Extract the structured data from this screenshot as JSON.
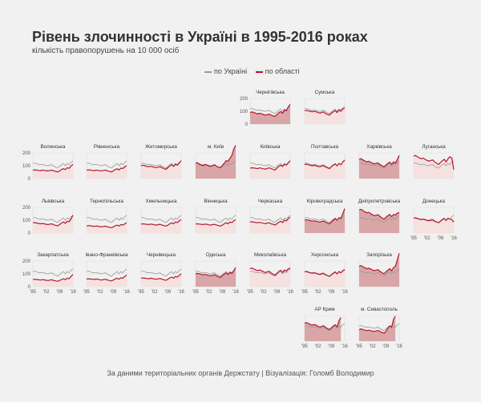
{
  "title": "Рівень злочинності в Україні в 1995-2016 роках",
  "subtitle": "кількість правопорушень на 10 000 осіб",
  "legend": {
    "national": "по Україні",
    "region": "по області"
  },
  "footer": "За даними територіальних органів Держстату | Візуалізація: Голомб Володимир",
  "colors": {
    "national": "#999999",
    "region": "#b2182b",
    "fill_low": "#f6e1e1",
    "fill_high": "#d9a6a8",
    "grid": "#dddddd"
  },
  "chart_data": {
    "type": "line",
    "layout": "small-multiples",
    "x": [
      1995,
      1996,
      1997,
      1998,
      1999,
      2000,
      2001,
      2002,
      2003,
      2004,
      2005,
      2006,
      2007,
      2008,
      2009,
      2010,
      2011,
      2012,
      2013,
      2014,
      2015,
      2016
    ],
    "x_tick_labels": [
      "'95",
      "'02",
      "'09",
      "'16"
    ],
    "y_ticks": [
      0,
      100,
      200
    ],
    "ylim": [
      0,
      200
    ],
    "national": [
      118,
      122,
      116,
      110,
      108,
      112,
      108,
      102,
      100,
      106,
      108,
      95,
      88,
      82,
      95,
      108,
      118,
      100,
      118,
      108,
      128,
      138
    ],
    "regions": [
      {
        "name": "Чернігівська",
        "values": [
          90,
          95,
          90,
          85,
          80,
          85,
          80,
          75,
          70,
          75,
          78,
          70,
          65,
          60,
          75,
          88,
          98,
          85,
          110,
          105,
          135,
          155
        ]
      },
      {
        "name": "Сумська",
        "values": [
          105,
          108,
          102,
          100,
          96,
          100,
          96,
          90,
          86,
          92,
          95,
          82,
          76,
          70,
          85,
          96,
          106,
          90,
          110,
          100,
          118,
          125
        ]
      },
      {
        "name": "Волинська",
        "values": [
          65,
          68,
          66,
          64,
          62,
          66,
          64,
          62,
          60,
          64,
          66,
          60,
          56,
          52,
          60,
          70,
          78,
          70,
          85,
          80,
          98,
          110
        ]
      },
      {
        "name": "Рівненська",
        "values": [
          65,
          68,
          66,
          64,
          62,
          66,
          64,
          62,
          60,
          64,
          66,
          60,
          56,
          52,
          60,
          70,
          76,
          68,
          82,
          78,
          92,
          100
        ]
      },
      {
        "name": "Житомирська",
        "values": [
          100,
          105,
          100,
          95,
          92,
          96,
          92,
          88,
          85,
          90,
          94,
          84,
          78,
          72,
          85,
          98,
          108,
          95,
          112,
          104,
          122,
          140
        ]
      },
      {
        "name": "м. Київ",
        "values": [
          120,
          125,
          110,
          105,
          100,
          110,
          105,
          98,
          95,
          100,
          108,
          95,
          90,
          85,
          102,
          120,
          140,
          135,
          160,
          180,
          230,
          280
        ]
      },
      {
        "name": "Київська",
        "values": [
          80,
          85,
          82,
          80,
          78,
          84,
          80,
          76,
          74,
          80,
          84,
          78,
          72,
          66,
          80,
          95,
          105,
          95,
          112,
          105,
          122,
          140
        ]
      },
      {
        "name": "Полтавська",
        "values": [
          110,
          112,
          108,
          104,
          100,
          104,
          100,
          95,
          92,
          98,
          100,
          90,
          84,
          78,
          92,
          104,
          114,
          100,
          118,
          108,
          130,
          145
        ]
      },
      {
        "name": "Харківська",
        "values": [
          150,
          155,
          145,
          138,
          130,
          135,
          128,
          120,
          115,
          120,
          122,
          108,
          100,
          92,
          105,
          118,
          128,
          112,
          130,
          120,
          150,
          180
        ]
      },
      {
        "name": "Луганська",
        "values": [
          175,
          180,
          170,
          162,
          155,
          160,
          150,
          142,
          136,
          142,
          145,
          130,
          120,
          110,
          125,
          138,
          150,
          130,
          155,
          170,
          160,
          70
        ]
      },
      {
        "name": "Львівська",
        "values": [
          80,
          82,
          78,
          75,
          72,
          75,
          72,
          68,
          66,
          70,
          72,
          64,
          60,
          56,
          66,
          78,
          86,
          76,
          92,
          88,
          110,
          140
        ]
      },
      {
        "name": "Тернопільська",
        "values": [
          55,
          58,
          56,
          54,
          52,
          55,
          53,
          50,
          48,
          52,
          54,
          48,
          45,
          42,
          48,
          56,
          62,
          55,
          66,
          62,
          72,
          80
        ]
      },
      {
        "name": "Хмельницька",
        "values": [
          70,
          72,
          70,
          68,
          66,
          70,
          68,
          64,
          62,
          66,
          68,
          62,
          58,
          54,
          62,
          72,
          80,
          72,
          86,
          82,
          95,
          105
        ]
      },
      {
        "name": "Вінницька",
        "values": [
          70,
          72,
          70,
          68,
          66,
          70,
          68,
          64,
          62,
          66,
          68,
          62,
          58,
          54,
          62,
          72,
          80,
          72,
          86,
          82,
          95,
          105
        ]
      },
      {
        "name": "Черкаська",
        "values": [
          85,
          88,
          85,
          82,
          80,
          84,
          80,
          76,
          74,
          78,
          80,
          72,
          68,
          62,
          72,
          84,
          92,
          82,
          100,
          95,
          112,
          125
        ]
      },
      {
        "name": "Кіровоградська",
        "values": [
          100,
          105,
          100,
          96,
          92,
          96,
          92,
          88,
          85,
          90,
          94,
          84,
          78,
          72,
          85,
          100,
          112,
          100,
          120,
          115,
          150,
          190
        ]
      },
      {
        "name": "Дніпропетровська",
        "values": [
          180,
          185,
          175,
          165,
          158,
          162,
          152,
          142,
          135,
          140,
          142,
          128,
          118,
          108,
          122,
          135,
          145,
          128,
          145,
          140,
          155,
          160
        ]
      },
      {
        "name": "Донецька",
        "values": [
          115,
          118,
          112,
          108,
          105,
          108,
          104,
          98,
          95,
          100,
          102,
          92,
          86,
          80,
          92,
          104,
          112,
          98,
          115,
          108,
          105,
          85
        ]
      },
      {
        "name": "Закарпатська",
        "values": [
          55,
          58,
          56,
          54,
          52,
          55,
          53,
          50,
          48,
          52,
          54,
          48,
          45,
          42,
          48,
          56,
          62,
          55,
          66,
          62,
          80,
          95
        ]
      },
      {
        "name": "Івано-Франківська",
        "values": [
          60,
          62,
          60,
          58,
          56,
          60,
          58,
          54,
          52,
          56,
          58,
          52,
          48,
          45,
          52,
          60,
          66,
          58,
          70,
          66,
          80,
          90
        ]
      },
      {
        "name": "Чернівецька",
        "values": [
          65,
          68,
          66,
          64,
          62,
          66,
          64,
          60,
          58,
          62,
          64,
          58,
          54,
          50,
          58,
          68,
          75,
          66,
          80,
          75,
          88,
          100
        ]
      },
      {
        "name": "Одеська",
        "values": [
          100,
          105,
          100,
          96,
          92,
          96,
          92,
          88,
          85,
          90,
          94,
          84,
          78,
          72,
          85,
          98,
          108,
          95,
          112,
          104,
          125,
          150
        ]
      },
      {
        "name": "Миколаївська",
        "values": [
          140,
          145,
          138,
          130,
          125,
          130,
          124,
          116,
          110,
          116,
          120,
          106,
          98,
          90,
          104,
          118,
          128,
          112,
          130,
          122,
          140,
          145
        ]
      },
      {
        "name": "Херсонська",
        "values": [
          115,
          118,
          112,
          108,
          105,
          108,
          104,
          98,
          95,
          100,
          102,
          92,
          86,
          80,
          92,
          104,
          114,
          100,
          118,
          108,
          124,
          130
        ]
      },
      {
        "name": "Запорізька",
        "values": [
          160,
          165,
          155,
          148,
          140,
          145,
          138,
          130,
          125,
          130,
          132,
          118,
          110,
          100,
          115,
          128,
          140,
          125,
          150,
          160,
          210,
          260
        ]
      },
      {
        "name": "АР Крим",
        "values": [
          140,
          145,
          138,
          130,
          125,
          130,
          124,
          116,
          110,
          116,
          120,
          106,
          98,
          90,
          104,
          118,
          128,
          112,
          160,
          185
        ]
      },
      {
        "name": "м. Севастополь",
        "values": [
          90,
          95,
          90,
          86,
          82,
          86,
          82,
          78,
          75,
          80,
          84,
          74,
          68,
          62,
          75,
          100,
          120,
          110,
          170,
          195
        ]
      }
    ]
  }
}
